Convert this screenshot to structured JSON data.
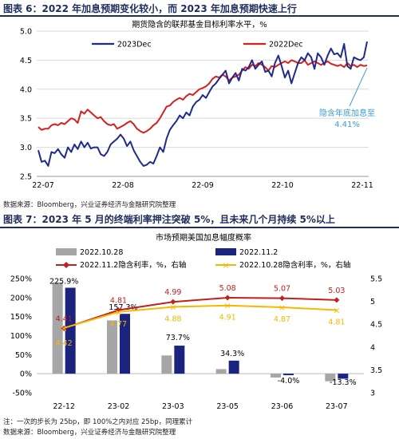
{
  "figure6": {
    "caption": "图表 6：2022 年加息预期变化较小，而 2023 年加息预期快速上行",
    "source": "数据来源：Bloomberg，兴业证券经济与金融研究院整理"
  },
  "figure7": {
    "caption": "图表 7：2023 年 5 月的终端利率押注突破 5%，且未来几个月持续 5%以上",
    "note": "注：一次的步长为 25bp，即 100%之内对应 25bp，同理累计",
    "source": "数据来源：Bloomberg，兴业证券经济与金融研究院整理"
  },
  "chart_data": [
    {
      "type": "line",
      "title": "期货隐含的联邦基金目标利率水平，%",
      "x_ticks": [
        "22-07",
        "22-08",
        "22-09",
        "22-10",
        "22-11"
      ],
      "ylim": [
        2.5,
        5.0
      ],
      "y_ticks": [
        "2.5",
        "3.0",
        "3.5",
        "4.0",
        "4.5",
        "5.0"
      ],
      "grid": true,
      "legend_position": "top",
      "annotation": "隐含年底加息至\n4.41%",
      "annotation_lines": [
        "隐含年底加息至",
        "4.41%"
      ],
      "series": [
        {
          "name": "2023Dec",
          "color": "#1f2a8a",
          "values": [
            2.95,
            2.75,
            2.77,
            2.68,
            2.92,
            2.9,
            2.97,
            2.88,
            2.82,
            3.0,
            2.92,
            3.05,
            2.97,
            3.1,
            3.0,
            3.08,
            2.98,
            3.0,
            3.0,
            2.88,
            2.85,
            2.92,
            3.05,
            3.1,
            3.15,
            3.22,
            3.15,
            3.02,
            3.1,
            2.95,
            2.85,
            2.75,
            2.68,
            2.7,
            2.75,
            2.72,
            2.85,
            3.0,
            2.92,
            3.15,
            3.3,
            3.38,
            3.45,
            3.55,
            3.5,
            3.6,
            3.55,
            3.7,
            3.78,
            3.82,
            3.9,
            3.85,
            3.95,
            4.05,
            4.1,
            4.18,
            4.25,
            4.32,
            4.1,
            4.2,
            4.28,
            4.15,
            4.35,
            4.32,
            4.38,
            4.5,
            4.35,
            4.42,
            4.48,
            4.3,
            4.32,
            4.22,
            4.45,
            4.58,
            4.4,
            4.2,
            4.32,
            4.1,
            4.28,
            4.45,
            4.55,
            4.5,
            4.62,
            4.55,
            4.35,
            4.62,
            4.55,
            4.42,
            4.58,
            4.7,
            4.6,
            4.62,
            4.55,
            4.78,
            4.4,
            4.35,
            4.55,
            4.52,
            4.5,
            4.55,
            4.82
          ]
        },
        {
          "name": "2022Dec",
          "color": "#d61f1f",
          "values": [
            3.35,
            3.3,
            3.32,
            3.32,
            3.38,
            3.4,
            3.38,
            3.42,
            3.4,
            3.45,
            3.5,
            3.48,
            3.42,
            3.62,
            3.58,
            3.65,
            3.6,
            3.55,
            3.5,
            3.52,
            3.45,
            3.4,
            3.38,
            3.4,
            3.32,
            3.35,
            3.38,
            3.42,
            3.45,
            3.4,
            3.32,
            3.28,
            3.25,
            3.28,
            3.32,
            3.38,
            3.42,
            3.5,
            3.6,
            3.7,
            3.72,
            3.78,
            3.82,
            3.85,
            3.82,
            3.88,
            3.92,
            3.9,
            3.95,
            4.0,
            4.02,
            4.05,
            4.1,
            4.18,
            4.22,
            4.2,
            4.25,
            4.22,
            4.15,
            4.2,
            4.22,
            4.25,
            4.32,
            4.38,
            4.35,
            4.42,
            4.4,
            4.45,
            4.42,
            4.38,
            4.32,
            4.4,
            4.38,
            4.42,
            4.45,
            4.48,
            4.45,
            4.5,
            4.48,
            4.45,
            4.45,
            4.5,
            4.42,
            4.45,
            4.48,
            4.45,
            4.42,
            4.45,
            4.48,
            4.44,
            4.42,
            4.4,
            4.42,
            4.38,
            4.45,
            4.4,
            4.42,
            4.38,
            4.42,
            4.4,
            4.41
          ]
        }
      ]
    },
    {
      "type": "bar",
      "title": "市场预期美国加息幅度概率",
      "categories": [
        "22-12",
        "23-02",
        "23-03",
        "23-05",
        "23-06",
        "23-07"
      ],
      "ylim_left": [
        -50,
        250
      ],
      "y_ticks_left": [
        "-50%",
        "0%",
        "50%",
        "100%",
        "150%",
        "200%",
        "250%"
      ],
      "ylim_right": [
        3,
        5.5
      ],
      "y_ticks_right": [
        "3",
        "3.5",
        "4",
        "4.5",
        "5",
        "5.5"
      ],
      "legend_position": "top",
      "bar_series": [
        {
          "name": "2022.10.28",
          "color": "#a6a6a6",
          "values": [
            240,
            140,
            48,
            12,
            -10,
            -20
          ]
        },
        {
          "name": "2022.11.2",
          "color": "#1a237e",
          "values": [
            225.9,
            157.3,
            73.7,
            34.3,
            -4.0,
            -13.3
          ],
          "labels": [
            "225.9%",
            "157.3%",
            "73.7%",
            "34.3%",
            "-4.0%",
            "-13.3%"
          ]
        }
      ],
      "line_series": [
        {
          "name": "2022.11.2隐含利率，%，右轴",
          "color": "#c0201e",
          "values": [
            4.41,
            4.81,
            4.99,
            5.08,
            5.07,
            5.03
          ],
          "labels": [
            "4.41",
            "4.81",
            "4.99",
            "5.08",
            "5.07",
            "5.03"
          ]
        },
        {
          "name": "2022.10.28隐含利率，%，右轴",
          "color": "#f5b800",
          "values": [
            4.42,
            4.77,
            4.88,
            4.91,
            4.87,
            4.81
          ],
          "labels": [
            "4.42",
            "4.77",
            "4.88",
            "4.91",
            "4.87",
            "4.81"
          ]
        }
      ]
    }
  ]
}
